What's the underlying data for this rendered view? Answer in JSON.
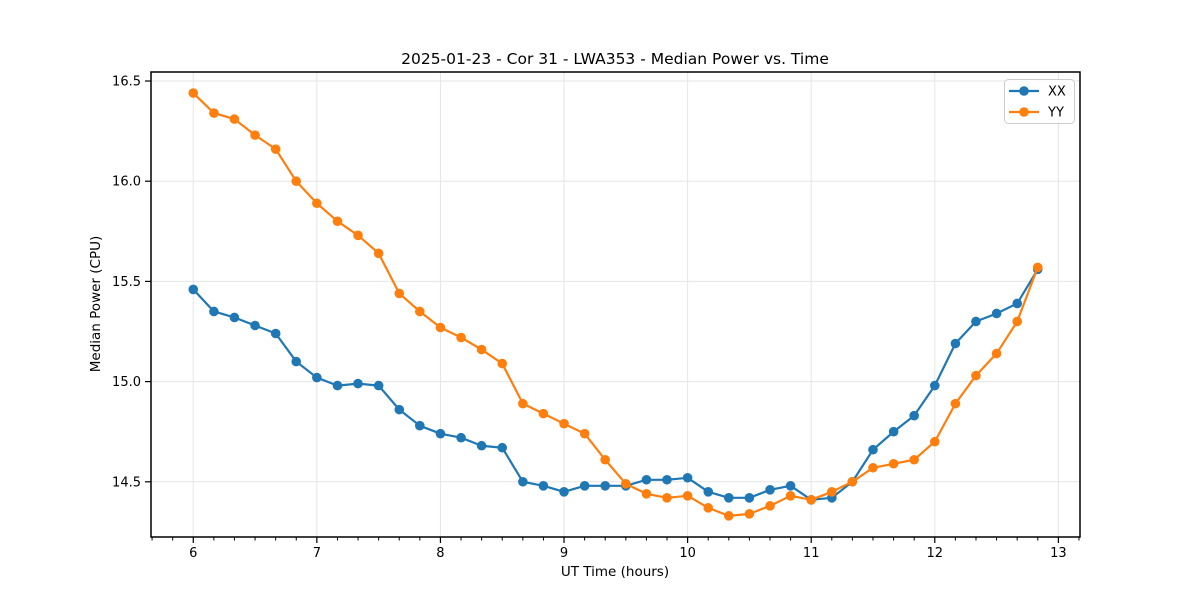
{
  "chart_data": {
    "type": "line",
    "title": "2025-01-23 - Cor 31 - LWA353 - Median Power vs. Time",
    "xlabel": "UT Time (hours)",
    "ylabel": "Median Power (CPU)",
    "xlim": [
      5.658,
      13.175
    ],
    "ylim": [
      14.2245,
      16.545
    ],
    "x_ticks": [
      6,
      7,
      8,
      9,
      10,
      11,
      12,
      13
    ],
    "y_ticks": [
      14.5,
      15.0,
      15.5,
      16.0,
      16.5
    ],
    "x_minor_step_hours": 0.16667,
    "grid": true,
    "legend_position": "upper right",
    "marker": "circle",
    "background": "#ffffff",
    "grid_color": "#e5e5e5",
    "x": [
      6,
      6.167,
      6.333,
      6.5,
      6.667,
      6.833,
      7,
      7.167,
      7.333,
      7.5,
      7.667,
      7.833,
      8,
      8.167,
      8.333,
      8.5,
      8.667,
      8.833,
      9,
      9.167,
      9.333,
      9.5,
      9.667,
      9.833,
      10,
      10.167,
      10.333,
      10.5,
      10.667,
      10.833,
      11,
      11.167,
      11.333,
      11.5,
      11.667,
      11.833,
      12,
      12.167,
      12.333,
      12.5,
      12.667,
      12.833
    ],
    "series": [
      {
        "name": "XX",
        "color": "#1f77b4",
        "values": [
          15.46,
          15.35,
          15.32,
          15.28,
          15.24,
          15.1,
          15.02,
          14.98,
          14.99,
          14.98,
          14.86,
          14.78,
          14.74,
          14.72,
          14.68,
          14.67,
          14.5,
          14.48,
          14.45,
          14.48,
          14.48,
          14.48,
          14.51,
          14.51,
          14.52,
          14.45,
          14.42,
          14.42,
          14.46,
          14.48,
          14.41,
          14.42,
          14.5,
          14.66,
          14.75,
          14.83,
          14.98,
          15.19,
          15.3,
          15.34,
          15.39,
          15.56
        ]
      },
      {
        "name": "YY",
        "color": "#ff7f0e",
        "values": [
          16.44,
          16.34,
          16.31,
          16.23,
          16.16,
          16.0,
          15.89,
          15.8,
          15.73,
          15.64,
          15.44,
          15.35,
          15.27,
          15.22,
          15.16,
          15.09,
          14.89,
          14.84,
          14.79,
          14.74,
          14.61,
          14.49,
          14.44,
          14.42,
          14.43,
          14.37,
          14.33,
          14.34,
          14.38,
          14.43,
          14.41,
          14.45,
          14.5,
          14.57,
          14.59,
          14.61,
          14.7,
          14.89,
          15.03,
          15.14,
          15.3,
          15.57
        ]
      }
    ]
  }
}
